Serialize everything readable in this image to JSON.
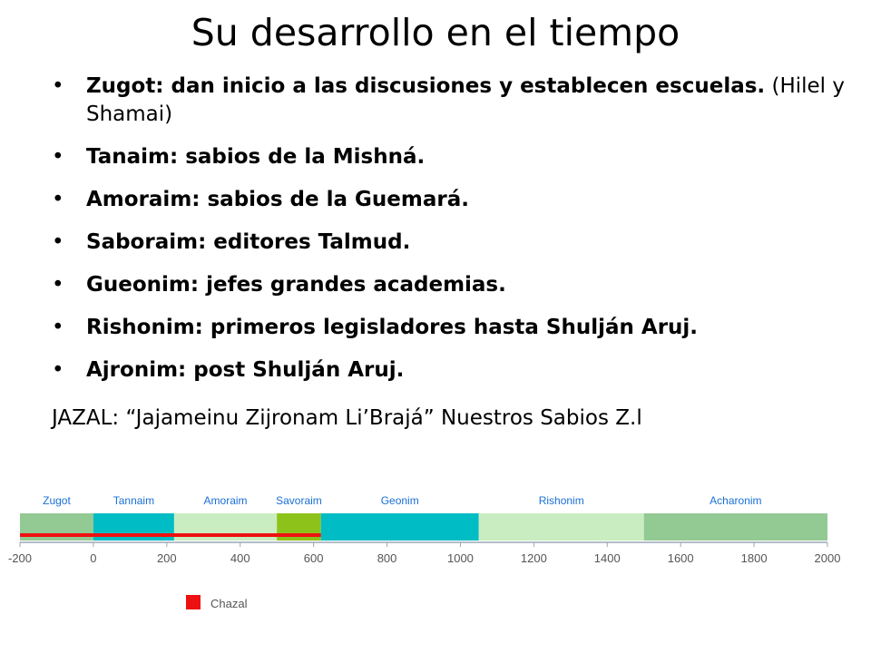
{
  "slide": {
    "title": "Su desarrollo en el tiempo",
    "bullets": [
      {
        "bold": "Zugot: dan inicio a las discusiones y establecen escuelas.",
        "note": "(Hilel y Shamai)"
      },
      {
        "bold": "Tanaim: sabios de la Mishná.",
        "note": ""
      },
      {
        "bold": "Amoraim: sabios de la Guemará.",
        "note": ""
      },
      {
        "bold": "Saboraim: editores Talmud.",
        "note": ""
      },
      {
        "bold": "Gueonim: jefes grandes academias.",
        "note": ""
      },
      {
        "bold": "Rishonim: primeros legisladores hasta Shulján Aruj.",
        "note": ""
      },
      {
        "bold": "Ajronim: post Shulján Aruj.",
        "note": ""
      }
    ],
    "bullet_glyph": "•",
    "footer_text": "JAZAL: “Jajameinu Zijronam Li’Brajá” Nuestros Sabios Z.l"
  },
  "chart_data": {
    "type": "timeline",
    "xlim": [
      -200,
      2000
    ],
    "ticks": [
      -200,
      0,
      200,
      400,
      600,
      800,
      1000,
      1200,
      1400,
      1600,
      1800,
      2000
    ],
    "periods": [
      {
        "name": "Zugot",
        "start": -200,
        "end": 0,
        "color": "#93c993"
      },
      {
        "name": "Tannaim",
        "start": 0,
        "end": 220,
        "color": "#00bcc4"
      },
      {
        "name": "Amoraim",
        "start": 220,
        "end": 500,
        "color": "#c9edc0"
      },
      {
        "name": "Savoraim",
        "start": 500,
        "end": 620,
        "color": "#8cc21a"
      },
      {
        "name": "Geonim",
        "start": 620,
        "end": 1050,
        "color": "#00bcc4"
      },
      {
        "name": "Rishonim",
        "start": 1050,
        "end": 1500,
        "color": "#c9edc0"
      },
      {
        "name": "Acharonim",
        "start": 1500,
        "end": 2000,
        "color": "#93c993"
      }
    ],
    "highlight": {
      "name": "Chazal",
      "start": -200,
      "end": 620,
      "color": "#ee1111"
    },
    "legend": {
      "label": "Chazal",
      "color": "#ee1111",
      "placement": "bottom-center"
    },
    "label_color": "#1a6fd4",
    "tick_color": "#555555"
  }
}
